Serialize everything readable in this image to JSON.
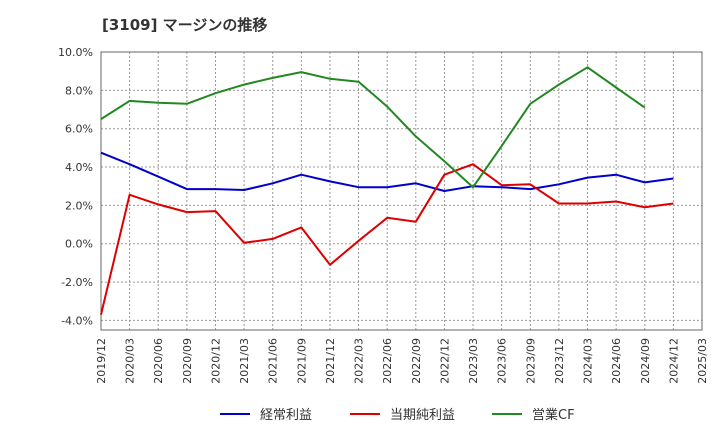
{
  "chart_data": {
    "type": "line",
    "title": "[3109]  マージンの推移",
    "x": [
      "2019/12",
      "2020/03",
      "2020/06",
      "2020/09",
      "2020/12",
      "2021/03",
      "2021/06",
      "2021/09",
      "2021/12",
      "2022/03",
      "2022/06",
      "2022/09",
      "2022/12",
      "2023/03",
      "2023/06",
      "2023/09",
      "2023/12",
      "2024/03",
      "2024/06",
      "2024/09",
      "2024/12",
      "2025/03"
    ],
    "y_ticks": [
      "10.0%",
      "8.0%",
      "6.0%",
      "4.0%",
      "2.0%",
      "0.0%",
      "-2.0%",
      "-4.0%"
    ],
    "ylim": [
      -4.5,
      10.0
    ],
    "grid": true,
    "legend_position": "bottom",
    "series": [
      {
        "name": "経常利益",
        "color": "#0000cc",
        "values": [
          4.75,
          4.15,
          3.5,
          2.85,
          2.85,
          2.8,
          3.15,
          3.6,
          3.25,
          2.95,
          2.95,
          3.15,
          2.75,
          3.0,
          2.95,
          2.85,
          3.1,
          3.45,
          3.6,
          3.2,
          3.4,
          null
        ]
      },
      {
        "name": "当期純利益",
        "color": "#dd0000",
        "values": [
          -3.7,
          2.55,
          2.05,
          1.65,
          1.7,
          0.05,
          0.25,
          0.85,
          -1.1,
          0.15,
          1.35,
          1.15,
          3.6,
          4.15,
          3.05,
          3.1,
          2.1,
          2.1,
          2.2,
          1.9,
          2.1,
          null
        ]
      },
      {
        "name": "営業CF",
        "color": "#228822",
        "values": [
          6.5,
          7.45,
          7.35,
          7.3,
          7.85,
          8.3,
          8.65,
          8.95,
          8.6,
          8.45,
          7.15,
          5.6,
          4.3,
          2.95,
          5.1,
          7.3,
          8.3,
          9.2,
          8.15,
          7.1,
          null,
          null
        ]
      }
    ]
  }
}
